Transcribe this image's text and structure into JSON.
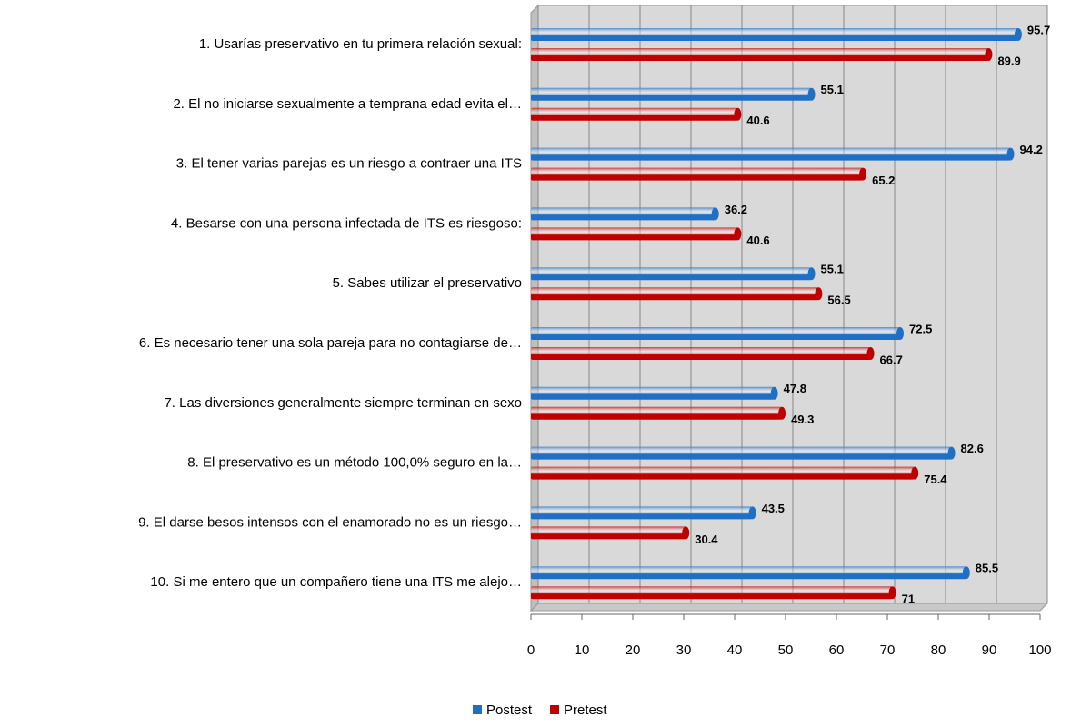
{
  "chart_data": {
    "type": "bar",
    "orientation": "horizontal",
    "categories": [
      "1. Usarías  preservativo en tu primera relación sexual:",
      "2. El no iniciarse sexualmente a temprana edad evita  el…",
      "3. El tener varias parejas es un riesgo a contraer una ITS",
      "4. Besarse con una persona infectada de ITS es riesgoso:",
      "5. Sabes utilizar el preservativo",
      "6. Es necesario tener una sola pareja para no contagiarse de…",
      "7. Las diversiones generalmente siempre terminan en sexo",
      "8. El preservativo es un método 100,0% seguro en la…",
      "9. El darse besos intensos con el enamorado no es un riesgo…",
      "10. Si me entero que un compañero tiene una ITS me alejo…"
    ],
    "series": [
      {
        "name": "Postest",
        "color": "#1f6fc5",
        "values": [
          95.7,
          55.1,
          94.2,
          36.2,
          55.1,
          72.5,
          47.8,
          82.6,
          43.5,
          85.5
        ]
      },
      {
        "name": "Pretest",
        "color": "#c00000",
        "values": [
          89.9,
          40.6,
          65.2,
          40.6,
          56.5,
          66.7,
          49.3,
          75.4,
          30.4,
          71
        ]
      }
    ],
    "xlim": [
      0,
      100
    ],
    "xticks": [
      0,
      10,
      20,
      30,
      40,
      50,
      60,
      70,
      80,
      90,
      100
    ],
    "grid": true,
    "legend": "bottom"
  }
}
